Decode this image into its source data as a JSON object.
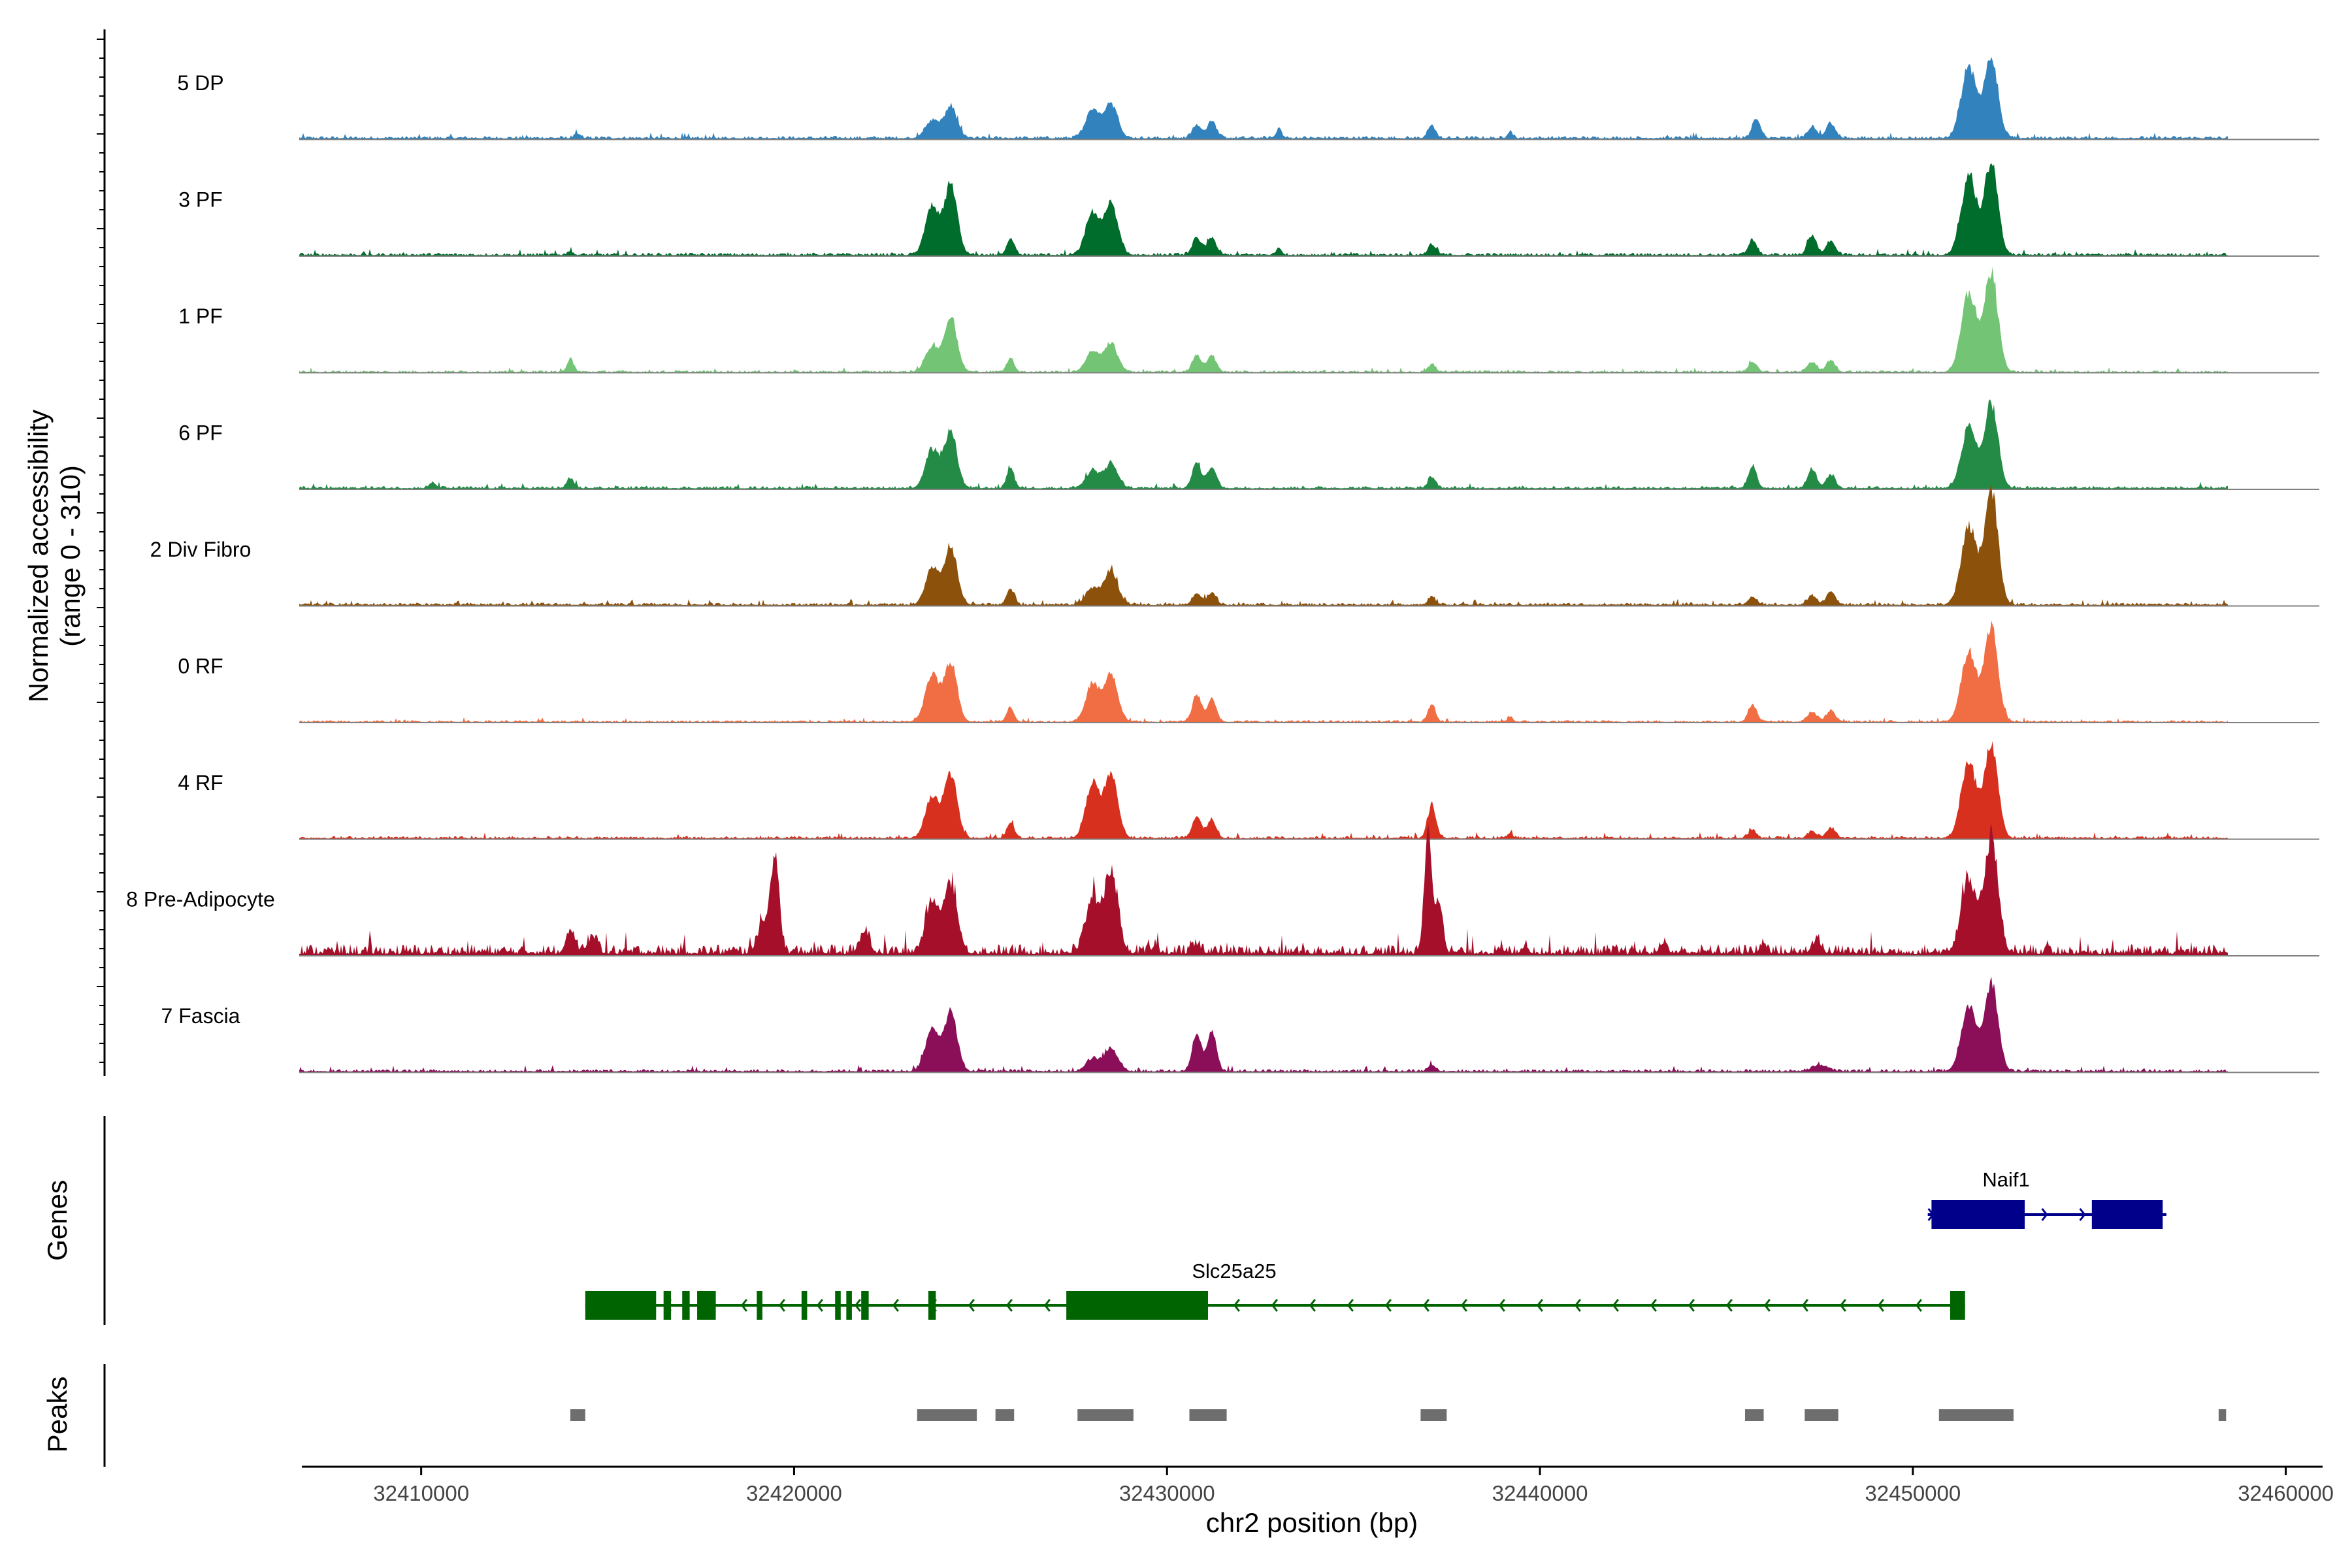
{
  "chart_data": {
    "type": "area",
    "title": "",
    "xlabel": "chr2 position (bp)",
    "ylabel_line1": "Normalized accessibility",
    "ylabel_line2": "(range 0 - 310)",
    "xlim": [
      32406800,
      32460900
    ],
    "ylim": [
      0,
      310
    ],
    "x_ticks": [
      32410000,
      32420000,
      32430000,
      32440000,
      32450000,
      32460000
    ],
    "x_tick_labels": [
      "32410000",
      "32420000",
      "32430000",
      "32440000",
      "32450000",
      "32460000"
    ],
    "tracks": [
      {
        "name": "5 DP",
        "color": "#3182bd",
        "baseline": 7,
        "noise": 4,
        "peaks": [
          [
            32414200,
            0.03,
            80
          ],
          [
            32423700,
            0.14,
            180
          ],
          [
            32424200,
            0.25,
            170
          ],
          [
            32428000,
            0.23,
            180
          ],
          [
            32428500,
            0.27,
            180
          ],
          [
            32430800,
            0.1,
            120
          ],
          [
            32431200,
            0.14,
            120
          ],
          [
            32433000,
            0.08,
            70
          ],
          [
            32437100,
            0.1,
            100
          ],
          [
            32439200,
            0.05,
            70
          ],
          [
            32445800,
            0.15,
            110
          ],
          [
            32447300,
            0.09,
            120
          ],
          [
            32447800,
            0.12,
            120
          ],
          [
            32451500,
            0.56,
            200
          ],
          [
            32452100,
            0.64,
            180
          ]
        ]
      },
      {
        "name": "3 PF",
        "color": "#006d2c",
        "baseline": 6,
        "noise": 4,
        "peaks": [
          [
            32414000,
            0.03,
            70
          ],
          [
            32423700,
            0.38,
            180
          ],
          [
            32424200,
            0.55,
            170
          ],
          [
            32425800,
            0.13,
            100
          ],
          [
            32428000,
            0.33,
            180
          ],
          [
            32428500,
            0.4,
            180
          ],
          [
            32430800,
            0.13,
            120
          ],
          [
            32431200,
            0.13,
            120
          ],
          [
            32433000,
            0.06,
            70
          ],
          [
            32437100,
            0.08,
            100
          ],
          [
            32445700,
            0.12,
            110
          ],
          [
            32447300,
            0.15,
            120
          ],
          [
            32447800,
            0.11,
            120
          ],
          [
            32451500,
            0.62,
            200
          ],
          [
            32452100,
            0.72,
            180
          ]
        ]
      },
      {
        "name": "1 PF",
        "color": "#74c476",
        "baseline": 4,
        "noise": 3,
        "peaks": [
          [
            32414000,
            0.1,
            90
          ],
          [
            32423700,
            0.2,
            180
          ],
          [
            32424200,
            0.44,
            170
          ],
          [
            32425800,
            0.11,
            100
          ],
          [
            32428000,
            0.16,
            180
          ],
          [
            32428500,
            0.22,
            180
          ],
          [
            32430800,
            0.13,
            120
          ],
          [
            32431200,
            0.13,
            120
          ],
          [
            32437100,
            0.06,
            100
          ],
          [
            32445700,
            0.08,
            110
          ],
          [
            32447300,
            0.08,
            120
          ],
          [
            32447800,
            0.09,
            120
          ],
          [
            32451500,
            0.63,
            200
          ],
          [
            32452100,
            0.78,
            180
          ]
        ]
      },
      {
        "name": "6 PF",
        "color": "#238b45",
        "baseline": 6,
        "noise": 4,
        "peaks": [
          [
            32410300,
            0.04,
            90
          ],
          [
            32414000,
            0.08,
            90
          ],
          [
            32423700,
            0.3,
            180
          ],
          [
            32424200,
            0.44,
            170
          ],
          [
            32425800,
            0.16,
            100
          ],
          [
            32428000,
            0.13,
            180
          ],
          [
            32428500,
            0.19,
            180
          ],
          [
            32430800,
            0.2,
            120
          ],
          [
            32431200,
            0.17,
            120
          ],
          [
            32437100,
            0.09,
            100
          ],
          [
            32445700,
            0.17,
            110
          ],
          [
            32447300,
            0.15,
            120
          ],
          [
            32447800,
            0.1,
            120
          ],
          [
            32451500,
            0.48,
            200
          ],
          [
            32452100,
            0.67,
            180
          ]
        ]
      },
      {
        "name": "2 Div Fibro",
        "color": "#8c510a",
        "baseline": 6,
        "noise": 4,
        "peaks": [
          [
            32423700,
            0.28,
            180
          ],
          [
            32424200,
            0.45,
            170
          ],
          [
            32425800,
            0.13,
            100
          ],
          [
            32428000,
            0.13,
            180
          ],
          [
            32428500,
            0.26,
            180
          ],
          [
            32430800,
            0.09,
            120
          ],
          [
            32431200,
            0.09,
            120
          ],
          [
            32437100,
            0.06,
            100
          ],
          [
            32445700,
            0.06,
            110
          ],
          [
            32447300,
            0.07,
            120
          ],
          [
            32447800,
            0.1,
            120
          ],
          [
            32451500,
            0.62,
            200
          ],
          [
            32452100,
            0.92,
            180
          ]
        ]
      },
      {
        "name": "0 RF",
        "color": "#f16d43",
        "baseline": 4,
        "noise": 3,
        "peaks": [
          [
            32423700,
            0.37,
            180
          ],
          [
            32424200,
            0.47,
            170
          ],
          [
            32425800,
            0.11,
            100
          ],
          [
            32428000,
            0.3,
            180
          ],
          [
            32428500,
            0.37,
            180
          ],
          [
            32430800,
            0.22,
            120
          ],
          [
            32431200,
            0.18,
            120
          ],
          [
            32437100,
            0.14,
            100
          ],
          [
            32439200,
            0.04,
            70
          ],
          [
            32445700,
            0.14,
            110
          ],
          [
            32447300,
            0.08,
            120
          ],
          [
            32447800,
            0.09,
            120
          ],
          [
            32451500,
            0.55,
            200
          ],
          [
            32452100,
            0.76,
            180
          ]
        ]
      },
      {
        "name": "4 RF",
        "color": "#d7301f",
        "baseline": 5,
        "noise": 4,
        "peaks": [
          [
            32423700,
            0.33,
            180
          ],
          [
            32424200,
            0.51,
            170
          ],
          [
            32425800,
            0.12,
            100
          ],
          [
            32428000,
            0.43,
            180
          ],
          [
            32428500,
            0.5,
            180
          ],
          [
            32430800,
            0.17,
            120
          ],
          [
            32431200,
            0.14,
            120
          ],
          [
            32437100,
            0.27,
            110
          ],
          [
            32439200,
            0.04,
            70
          ],
          [
            32445700,
            0.06,
            110
          ],
          [
            32447300,
            0.05,
            120
          ],
          [
            32447800,
            0.08,
            120
          ],
          [
            32451500,
            0.6,
            200
          ],
          [
            32452100,
            0.74,
            180
          ]
        ]
      },
      {
        "name": "8 Pre-Adipocyte",
        "color": "#a50f2a",
        "baseline": 12,
        "noise": 16,
        "peaks": [
          [
            32414000,
            0.18,
            120
          ],
          [
            32414600,
            0.12,
            120
          ],
          [
            32419200,
            0.25,
            160
          ],
          [
            32419500,
            0.7,
            110
          ],
          [
            32421900,
            0.17,
            120
          ],
          [
            32423700,
            0.4,
            180
          ],
          [
            32424200,
            0.55,
            170
          ],
          [
            32428000,
            0.43,
            180
          ],
          [
            32428500,
            0.62,
            180
          ],
          [
            32430800,
            0.06,
            120
          ],
          [
            32437000,
            0.95,
            100
          ],
          [
            32437300,
            0.4,
            100
          ],
          [
            32439600,
            0.06,
            80
          ],
          [
            32443300,
            0.08,
            90
          ],
          [
            32446000,
            0.07,
            100
          ],
          [
            32447400,
            0.09,
            120
          ],
          [
            32451500,
            0.57,
            200
          ],
          [
            32452100,
            0.9,
            180
          ]
        ]
      },
      {
        "name": "7 Fascia",
        "color": "#8b0e58",
        "baseline": 6,
        "noise": 4,
        "peaks": [
          [
            32423700,
            0.33,
            180
          ],
          [
            32424200,
            0.47,
            170
          ],
          [
            32428000,
            0.1,
            180
          ],
          [
            32428500,
            0.18,
            180
          ],
          [
            32430800,
            0.3,
            120
          ],
          [
            32431200,
            0.33,
            120
          ],
          [
            32437100,
            0.05,
            100
          ],
          [
            32447500,
            0.05,
            200
          ],
          [
            32451500,
            0.51,
            200
          ],
          [
            32452100,
            0.7,
            180
          ]
        ]
      }
    ],
    "genes": [
      {
        "name": "Naif1",
        "strand": "+",
        "color": "#00008b",
        "start": 32450400,
        "end": 32456800,
        "exons": [
          [
            32450500,
            32453000
          ],
          [
            32454800,
            32456700
          ]
        ]
      },
      {
        "name": "Slc25a25",
        "strand": "-",
        "color": "#006400",
        "start": 32414400,
        "end": 32451400,
        "exons": [
          [
            32414400,
            32416300
          ],
          [
            32416500,
            32416700
          ],
          [
            32417000,
            32417200
          ],
          [
            32417400,
            32417900
          ],
          [
            32419000,
            32419150
          ],
          [
            32420200,
            32420350
          ],
          [
            32421100,
            32421250
          ],
          [
            32421400,
            32421550
          ],
          [
            32421800,
            32422000
          ],
          [
            32423600,
            32423800
          ],
          [
            32427300,
            32431100
          ],
          [
            32451000,
            32451400
          ]
        ]
      }
    ],
    "peaks": [
      [
        32414000,
        32414400
      ],
      [
        32423300,
        32424900
      ],
      [
        32425400,
        32425900
      ],
      [
        32427600,
        32429100
      ],
      [
        32430600,
        32431600
      ],
      [
        32436800,
        32437500
      ],
      [
        32445500,
        32446000
      ],
      [
        32447100,
        32448000
      ],
      [
        32450700,
        32452700
      ],
      [
        32458200,
        32458400
      ]
    ],
    "genes_label": "Genes",
    "peaks_label": "Peaks",
    "axis_color": "#000000",
    "peak_color": "#6e6e6e",
    "baseline_color": "#808080"
  }
}
